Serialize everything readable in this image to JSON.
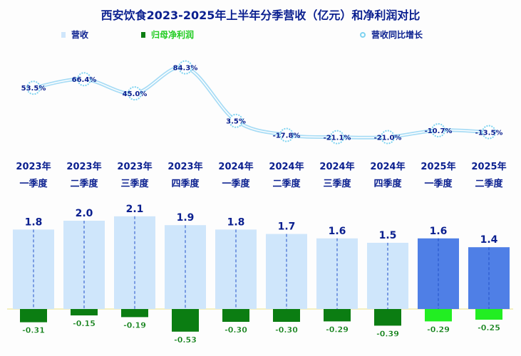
{
  "chart_data": {
    "type": "bar+line",
    "title": "西安饮食2023-2025年上半年分季营收（亿元）和净利润对比",
    "categories": [
      [
        "2023年",
        "一季度"
      ],
      [
        "2023年",
        "二季度"
      ],
      [
        "2023年",
        "三季度"
      ],
      [
        "2023年",
        "四季度"
      ],
      [
        "2024年",
        "一季度"
      ],
      [
        "2024年",
        "二季度"
      ],
      [
        "2024年",
        "三季度"
      ],
      [
        "2024年",
        "四季度"
      ],
      [
        "2025年",
        "一季度"
      ],
      [
        "2025年",
        "二季度"
      ]
    ],
    "series": [
      {
        "name": "营收",
        "type": "bar",
        "values": [
          1.8,
          2.0,
          2.1,
          1.9,
          1.8,
          1.7,
          1.6,
          1.5,
          1.6,
          1.4
        ],
        "labels": [
          "1.8",
          "2.0",
          "2.1",
          "1.9",
          "1.8",
          "1.7",
          "1.6",
          "1.5",
          "1.6",
          "1.4"
        ]
      },
      {
        "name": "归母净利润",
        "type": "bar",
        "values": [
          -0.31,
          -0.15,
          -0.19,
          -0.53,
          -0.3,
          -0.3,
          -0.29,
          -0.39,
          -0.29,
          -0.25
        ],
        "labels": [
          "-0.31",
          "-0.15",
          "-0.19",
          "-0.53",
          "-0.30",
          "-0.30",
          "-0.29",
          "-0.39",
          "-0.29",
          "-0.25"
        ]
      },
      {
        "name": "营收同比增长",
        "type": "line",
        "unit": "%",
        "values": [
          53.5,
          66.4,
          45.0,
          84.3,
          3.5,
          -17.8,
          -21.1,
          -21.0,
          -10.7,
          -13.5
        ],
        "labels": [
          "53.5%",
          "66.4%",
          "45.0%",
          "84.3%",
          "3.5%",
          "-17.8%",
          "-21.1%",
          "-21.0%",
          "-10.7%",
          "-13.5%"
        ]
      }
    ],
    "legend": "top",
    "grid": false,
    "colors": {
      "revenue_2023_2024": "#cfe6fb",
      "revenue_2025": "#4f7fe6",
      "profit_2023_2024": "#0b7d12",
      "profit_2025": "#22ee22",
      "line": "#a8dcf5",
      "title": "#0a1f8f",
      "axis_label": "#0a1f8f"
    }
  }
}
